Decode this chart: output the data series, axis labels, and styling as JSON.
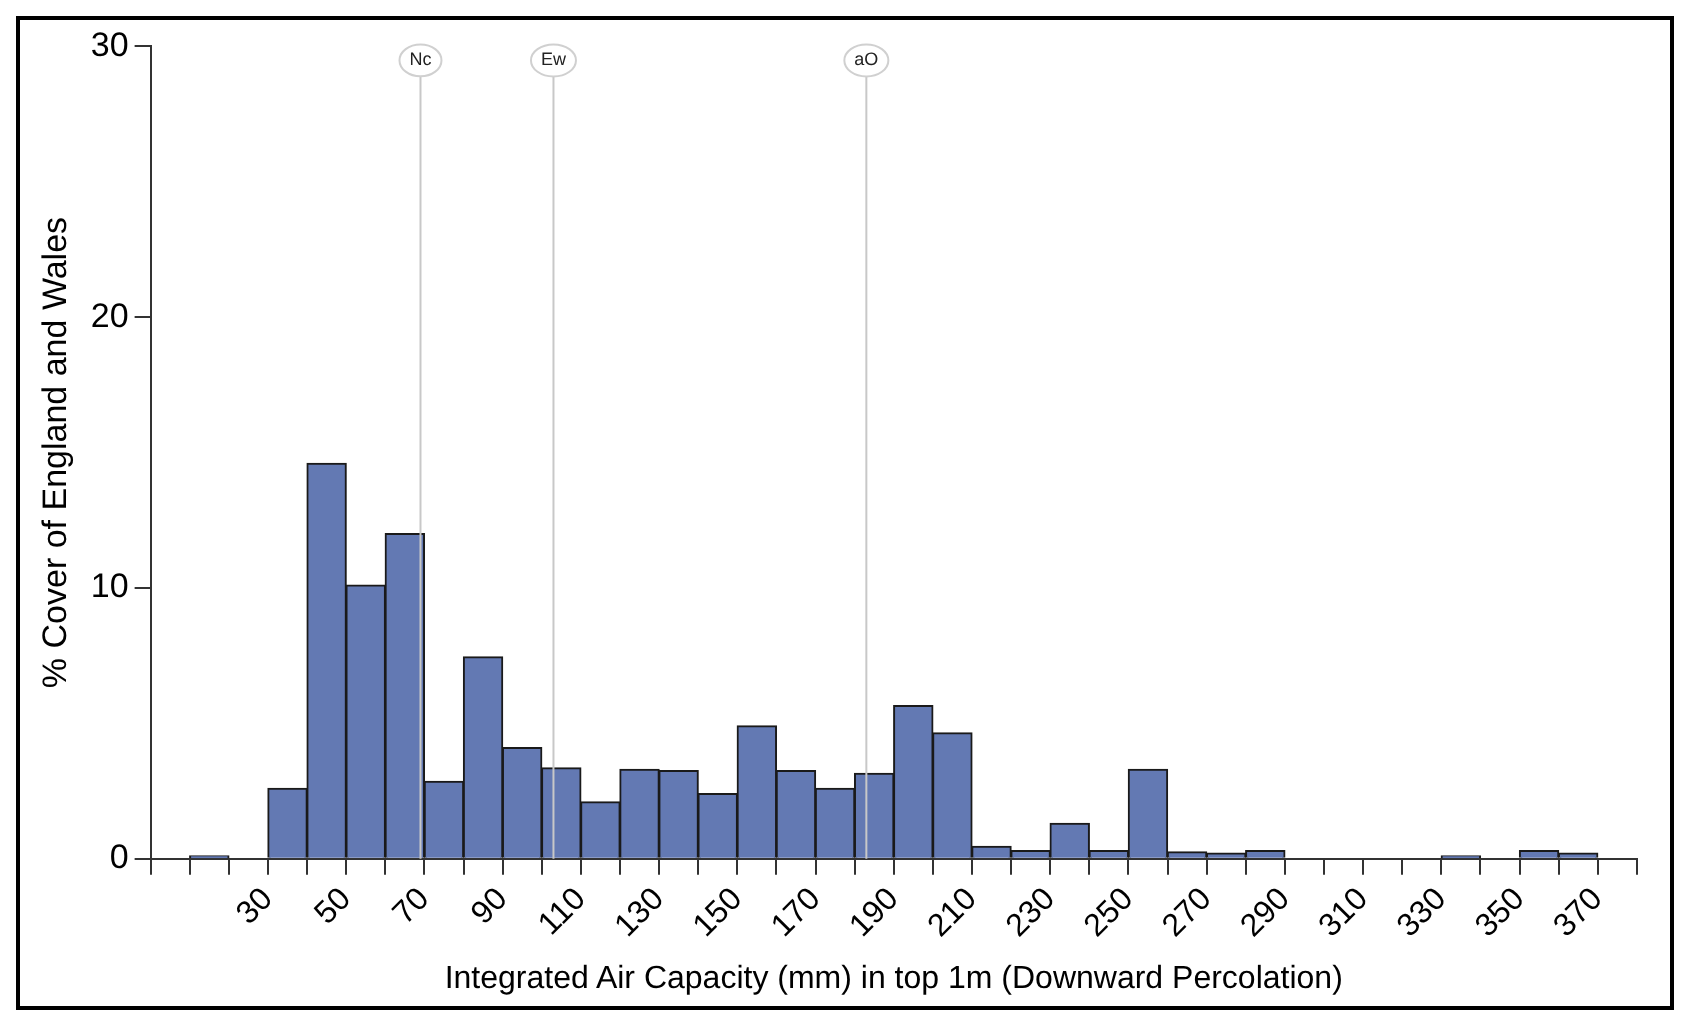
{
  "chart_data": {
    "type": "histogram",
    "xlabel": "Integrated Air Capacity (mm) in top 1m (Downward Percolation)",
    "ylabel": "% Cover of England and Wales",
    "bins": [
      0,
      10,
      20,
      30,
      40,
      50,
      60,
      70,
      80,
      90,
      100,
      110,
      120,
      130,
      140,
      150,
      160,
      170,
      180,
      190,
      200,
      210,
      220,
      230,
      240,
      250,
      260,
      270,
      280,
      290,
      300,
      310,
      320,
      330,
      340,
      350,
      360,
      370
    ],
    "values": [
      0,
      0.1,
      0,
      2.6,
      14.6,
      10.1,
      12.0,
      2.85,
      7.45,
      4.1,
      3.35,
      2.1,
      3.3,
      3.25,
      2.4,
      4.9,
      3.25,
      2.6,
      3.15,
      5.65,
      4.65,
      0.45,
      0.3,
      1.3,
      0.3,
      3.3,
      0.25,
      0.2,
      0.3,
      0,
      0,
      0,
      0,
      0.1,
      0,
      0.3,
      0.2
    ],
    "color": "#6379b3",
    "xlim": [
      0,
      380
    ],
    "xticks": [
      {
        "value": 0,
        "label": null
      },
      {
        "value": 10,
        "label": null
      },
      {
        "value": 20,
        "label": null
      },
      30,
      {
        "value": 40,
        "label": null
      },
      50,
      {
        "value": 60,
        "label": null
      },
      70,
      {
        "value": 80,
        "label": null
      },
      90,
      {
        "value": 100,
        "label": null
      },
      110,
      {
        "value": 120,
        "label": null
      },
      130,
      {
        "value": 140,
        "label": null
      },
      150,
      {
        "value": 160,
        "label": null
      },
      170,
      {
        "value": 180,
        "label": null
      },
      190,
      {
        "value": 200,
        "label": null
      },
      210,
      {
        "value": 220,
        "label": null
      },
      230,
      {
        "value": 240,
        "label": null
      },
      250,
      {
        "value": 260,
        "label": null
      },
      270,
      {
        "value": 280,
        "label": null
      },
      290,
      {
        "value": 300,
        "label": null
      },
      310,
      {
        "value": 320,
        "label": null
      },
      330,
      {
        "value": 340,
        "label": null
      },
      350,
      {
        "value": 360,
        "label": null
      },
      370,
      {
        "value": 380,
        "label": null
      }
    ],
    "ylim": [
      0,
      30
    ],
    "yticks": [
      0,
      10,
      20,
      30
    ],
    "grid": false,
    "legend": false,
    "ref_lines": [
      {
        "axis": "x",
        "value": 69,
        "label": "Nc",
        "color": "#c8c8c8"
      },
      {
        "axis": "x",
        "value": 103,
        "label": "Ew",
        "color": "#c8c8c8"
      },
      {
        "axis": "x",
        "value": 183,
        "label": "aO",
        "color": "#c8c8c8"
      }
    ]
  }
}
